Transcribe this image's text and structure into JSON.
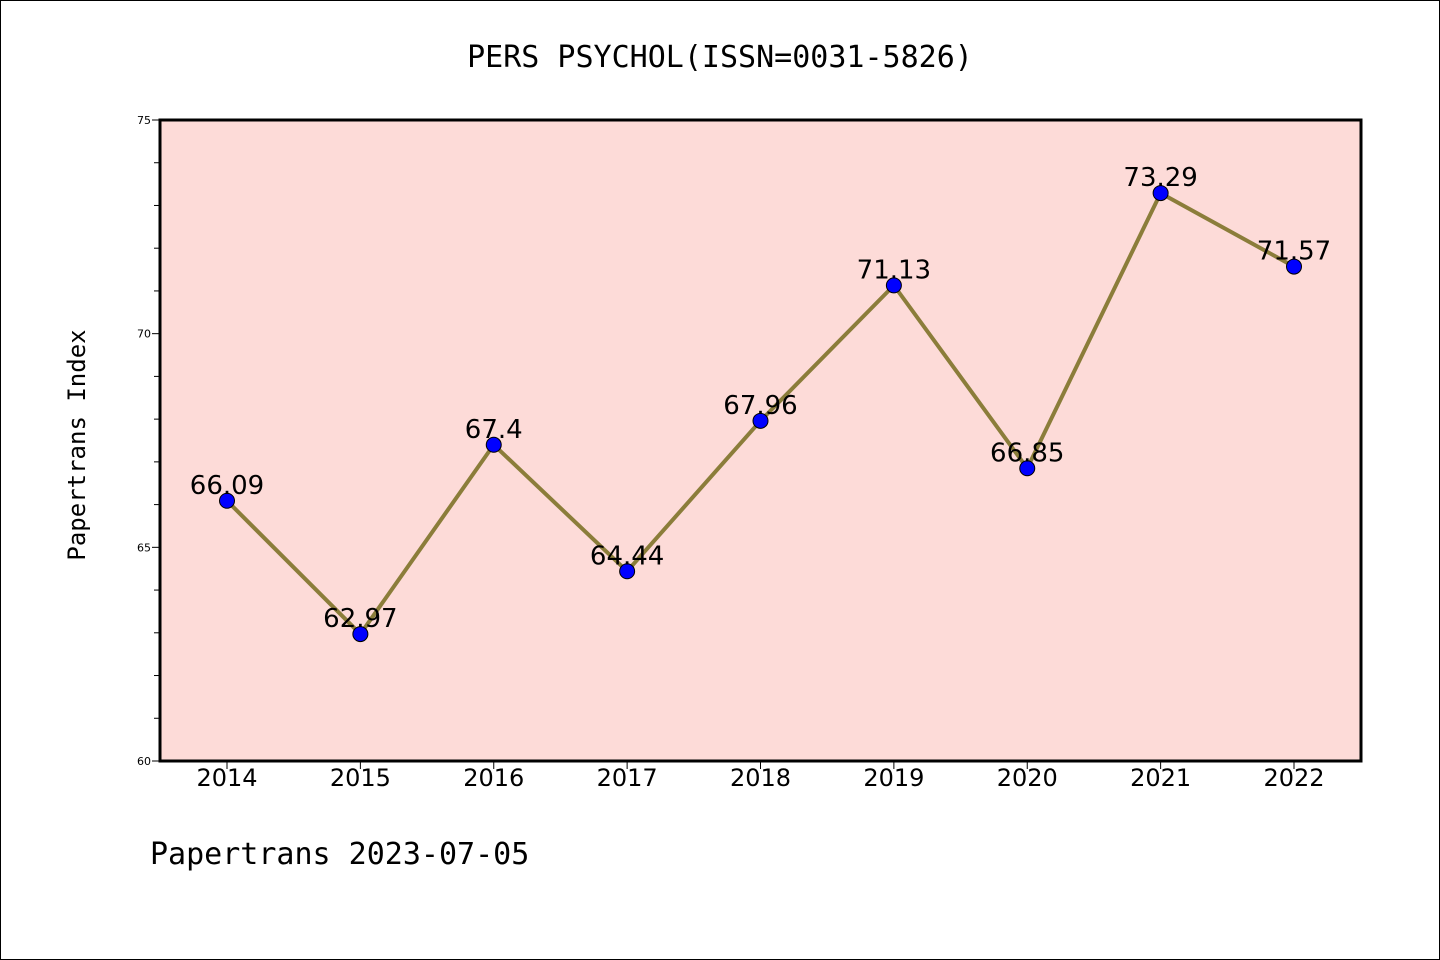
{
  "chart_data": {
    "type": "line",
    "title": "PERS PSYCHOL(ISSN=0031-5826)",
    "xlabel": "",
    "ylabel": "Papertrans Index",
    "categories": [
      "2014",
      "2015",
      "2016",
      "2017",
      "2018",
      "2019",
      "2020",
      "2021",
      "2022"
    ],
    "values": [
      66.09,
      62.97,
      67.4,
      64.44,
      67.96,
      71.13,
      66.85,
      73.29,
      71.57
    ],
    "data_labels": [
      "66.09",
      "62.97",
      "67.4",
      "64.44",
      "67.96",
      "71.13",
      "66.85",
      "73.29",
      "71.57"
    ],
    "ylim": [
      60,
      75
    ],
    "yticks": [
      "60",
      "65",
      "70",
      "75"
    ],
    "grid": false,
    "line_color": "#8b7d3a",
    "marker_color": "#0000ff",
    "plot_background": "#fddbd8"
  },
  "footer": {
    "text": "Papertrans 2023-07-05"
  }
}
